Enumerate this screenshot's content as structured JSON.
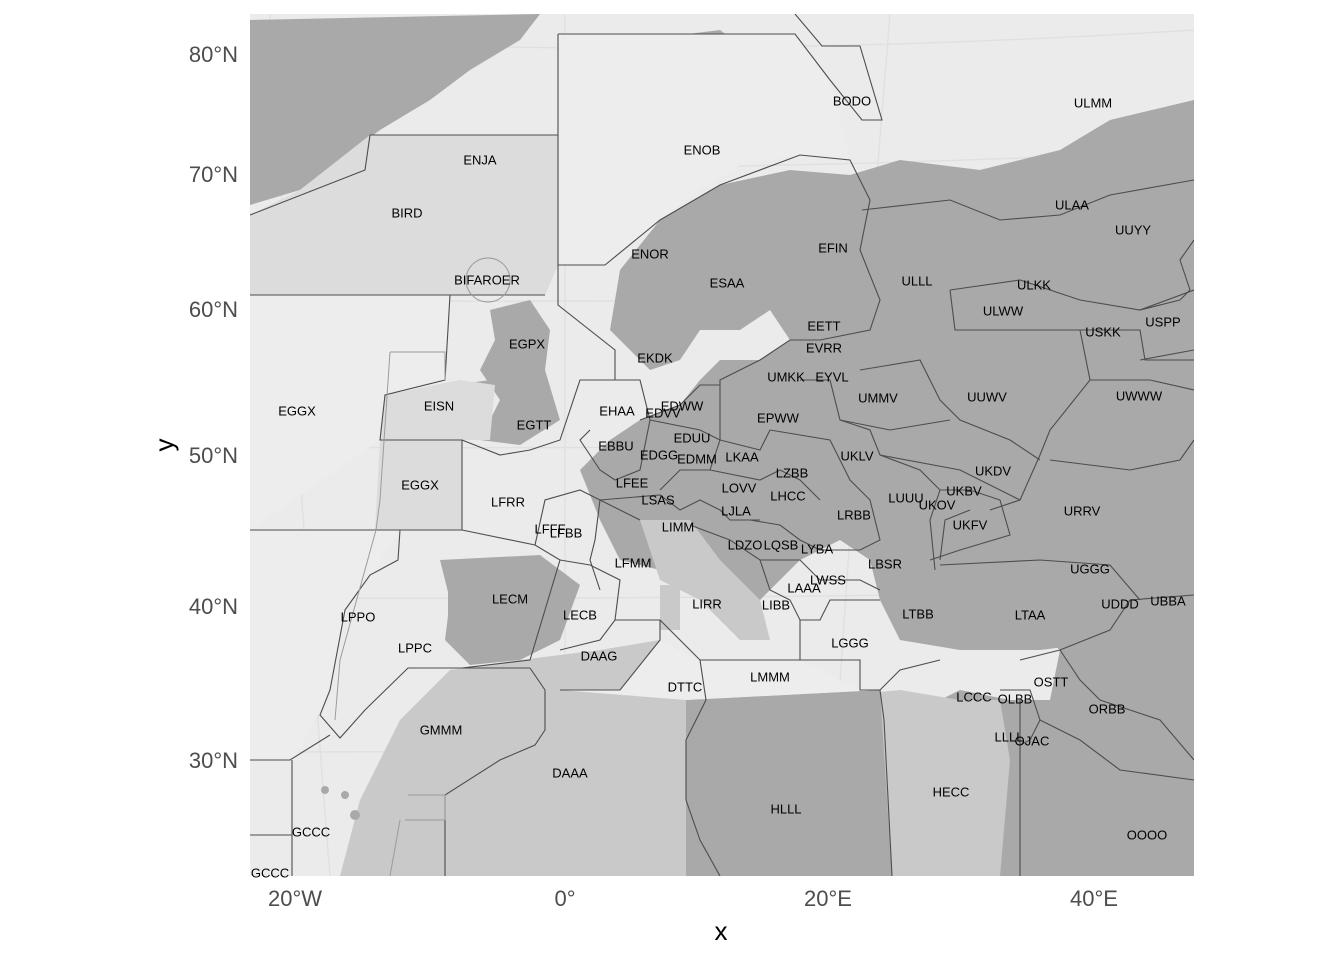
{
  "map": {
    "y_ticks": [
      "80°N",
      "70°N",
      "60°N",
      "50°N",
      "40°N",
      "30°N"
    ],
    "x_ticks": [
      "20°W",
      "0°",
      "20°E",
      "40°E"
    ],
    "xlabel": "x",
    "ylabel": "y",
    "colors": {
      "panel": "#ebebeb",
      "land": "#a9a9a9",
      "fir_border": "#4d4d4d"
    },
    "fir_labels": [
      "BODO",
      "ULMM",
      "ENJA",
      "ENOB",
      "ULAA",
      "UUYY",
      "BIRD",
      "EFIN",
      "ENOR",
      "ULLL",
      "ESAA",
      "ULKK",
      "BIFAROER",
      "ULWW",
      "USPP",
      "USKK",
      "EETT",
      "EGPX",
      "EVRR",
      "EKDK",
      "UMKK",
      "EYVL",
      "UMMV",
      "UUWV",
      "UWWW",
      "EGGX",
      "EISN",
      "EHAA",
      "EDWW",
      "EDVV",
      "EPWW",
      "EGTT",
      "EDUU",
      "EBBU",
      "EDGG",
      "EDMM",
      "LKAA",
      "UKLV",
      "UKDV",
      "EGGX",
      "LZBB",
      "LFEE",
      "LOVV",
      "UKBV",
      "LFRR",
      "LSAS",
      "LHCC",
      "LUUU",
      "UKOV",
      "LFFF",
      "LFBB",
      "LJLA",
      "LIMM",
      "LRBB",
      "URRV",
      "UKFV",
      "LDZO",
      "LQSB",
      "LYBA",
      "LFMM",
      "LBSR",
      "UGGG",
      "LWSS",
      "LECM",
      "LAAA",
      "UDDD",
      "UBBA",
      "LPPO",
      "LECB",
      "LIRR",
      "LIBB",
      "LTBB",
      "LTAA",
      "LPPC",
      "DAAG",
      "LGGG",
      "DTTC",
      "LMMM",
      "OSTT",
      "LCCC",
      "OLBB",
      "ORBB",
      "GMMM",
      "LLLL",
      "OJAC",
      "DAAA",
      "HECC",
      "HLLL",
      "GCCC",
      "OOOO",
      "GCCC"
    ]
  }
}
